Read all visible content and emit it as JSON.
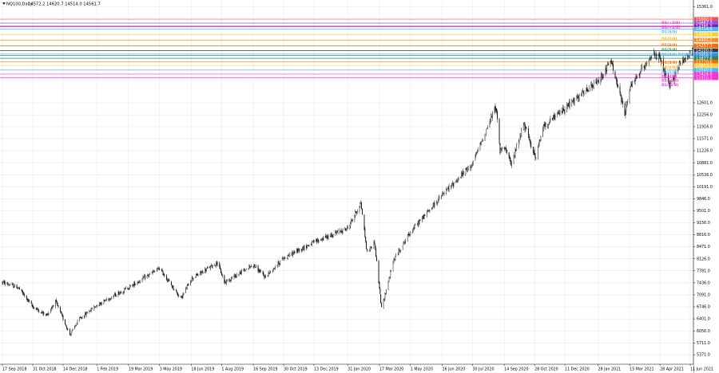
{
  "window": {
    "symbol": "NQ100,Daily",
    "ohlc": "14572.2 14620.7 14514.0 14561.7",
    "menu_icon": "triangle-down-icon"
  },
  "chart_data": {
    "type": "candlestick",
    "title": "NQ100,Daily",
    "grid": true,
    "ylim": [
      5100,
      15550
    ],
    "y_ticks": [
      "15361.0",
      "12601.0",
      "12256.0",
      "11916.0",
      "11571.0",
      "11226.0",
      "10881.0",
      "10536.0",
      "10191.0",
      "9846.0",
      "9501.0",
      "9156.0",
      "8816.0",
      "8471.0",
      "8126.0",
      "7781.0",
      "7436.0",
      "7091.0",
      "6746.0",
      "6401.0",
      "6056.0",
      "5711.0",
      "5371.0"
    ],
    "x_ticks": [
      "17 Sep 2018",
      "31 Oct 2018",
      "14 Dec 2018",
      "1 Feb 2019",
      "19 Mar 2019",
      "3 May 2019",
      "18 Jun 2019",
      "1 Aug 2019",
      "16 Sep 2019",
      "30 Oct 2019",
      "13 Dec 2019",
      "31 Jan 2020",
      "17 Mar 2020",
      "1 May 2020",
      "16 Jun 2020",
      "30 Jul 2020",
      "14 Sep 2020",
      "28 Oct 2020",
      "11 Dec 2020",
      "28 Jan 2021",
      "15 Mar 2021",
      "28 Apr 2021",
      "11 Jun 2021"
    ],
    "price_path": [
      [
        "17 Sep 2018",
        7450
      ],
      [
        "10 Oct 2018",
        7300
      ],
      [
        "31 Oct 2018",
        6750
      ],
      [
        "20 Nov 2018",
        6500
      ],
      [
        "3 Dec 2018",
        6900
      ],
      [
        "24 Dec 2018",
        5950
      ],
      [
        "7 Jan 2019",
        6400
      ],
      [
        "1 Feb 2019",
        6800
      ],
      [
        "19 Mar 2019",
        7300
      ],
      [
        "3 May 2019",
        7850
      ],
      [
        "3 Jun 2019",
        6980
      ],
      [
        "18 Jun 2019",
        7550
      ],
      [
        "26 Jul 2019",
        8020
      ],
      [
        "5 Aug 2019",
        7450
      ],
      [
        "16 Sep 2019",
        7950
      ],
      [
        "3 Oct 2019",
        7600
      ],
      [
        "30 Oct 2019",
        8150
      ],
      [
        "13 Dec 2019",
        8600
      ],
      [
        "31 Jan 2020",
        9000
      ],
      [
        "19 Feb 2020",
        9730
      ],
      [
        "28 Feb 2020",
        8300
      ],
      [
        "10 Mar 2020",
        8600
      ],
      [
        "20 Mar 2020",
        6700
      ],
      [
        "7 Apr 2020",
        8100
      ],
      [
        "1 May 2020",
        8900
      ],
      [
        "16 Jun 2020",
        9950
      ],
      [
        "30 Jul 2020",
        10850
      ],
      [
        "2 Sep 2020",
        12500
      ],
      [
        "8 Sep 2020",
        11200
      ],
      [
        "14 Sep 2020",
        11400
      ],
      [
        "24 Sep 2020",
        10800
      ],
      [
        "12 Oct 2020",
        12000
      ],
      [
        "30 Oct 2020",
        11000
      ],
      [
        "9 Nov 2020",
        11900
      ],
      [
        "11 Dec 2020",
        12450
      ],
      [
        "28 Jan 2021",
        13200
      ],
      [
        "16 Feb 2021",
        13800
      ],
      [
        "8 Mar 2021",
        12300
      ],
      [
        "15 Mar 2021",
        13000
      ],
      [
        "16 Apr 2021",
        14000
      ],
      [
        "28 Apr 2021",
        13850
      ],
      [
        "12 May 2021",
        13050
      ],
      [
        "26 May 2021",
        13700
      ],
      [
        "11 Jun 2021",
        14050
      ],
      [
        "1 Jul 2021",
        14561.7
      ]
    ],
    "levels": [
      {
        "value": 15000.0,
        "label": "15000.0",
        "color": "#ff4d4d",
        "note": ""
      },
      {
        "value": 14887.3,
        "label": "14887.3",
        "color": "#7a5cff",
        "note": ""
      },
      {
        "value": 14811.1,
        "label": "14811.1",
        "color": "#ff2fd3",
        "note": ""
      },
      {
        "value": 14785.2,
        "label": "14785.2",
        "color": "#7a1fa6",
        "note": ""
      },
      {
        "value": 14714.6,
        "label": "14714.6",
        "color": "#48b9ff",
        "note": ""
      },
      {
        "value": 14564.4,
        "label": "14564.4",
        "color": "#ffcc33",
        "note": ""
      },
      {
        "value": 14401.2,
        "label": "14401.2",
        "color": "#ff8c1a",
        "note": ""
      },
      {
        "value": 14237.3,
        "label": "14237.3",
        "color": "#ff6a00",
        "note": ""
      },
      {
        "value": 14100.0,
        "label": "14100.0",
        "color": "#3a3a3a",
        "note": ""
      },
      {
        "value": 13998.2,
        "label": "13998.2",
        "color": "#48b9ff",
        "note": ""
      },
      {
        "value": 13958.5,
        "label": "13958.5",
        "color": "#2e8bff",
        "note": ""
      },
      {
        "value": 13877.6,
        "label": "13877.6",
        "color": "#2d8a4e",
        "note": ""
      },
      {
        "value": 13770.6,
        "label": "13770.6",
        "color": "#ff6a00",
        "note": ""
      },
      {
        "value": 13673.3,
        "label": "13673.3",
        "color": "#ffcc33",
        "note": ""
      },
      {
        "value": 13540.6,
        "label": "13540.6",
        "color": "#48b9ff",
        "note": ""
      },
      {
        "value": 13424.6,
        "label": "13424.6",
        "color": "#ff2fd3",
        "note": ""
      },
      {
        "value": 13315.2,
        "label": "13315.2",
        "color": "#ff2fd3",
        "note": ""
      }
    ],
    "pivot_labels": [
      {
        "text": "D1(+2/8)",
        "value": 14900,
        "color": "#ff2fd3"
      },
      {
        "text": "D1(+1/8)",
        "value": 14760,
        "color": "#ff2fd3"
      },
      {
        "text": "D1(8/8)",
        "value": 14640,
        "color": "#48b9ff"
      },
      {
        "text": "D1(7/8)",
        "value": 14430,
        "color": "#ffb000"
      },
      {
        "text": "D1(6/8)",
        "value": 14260,
        "color": "#ff6a00"
      },
      {
        "text": "D1(5/8)",
        "value": 14120,
        "color": "#2d8a4e"
      },
      {
        "text": "D1(4/8) D1(PIVOT)",
        "value": 13980,
        "color": "#48b9ff"
      },
      {
        "text": "D1(3/8)",
        "value": 13750,
        "color": "#ff6a00"
      },
      {
        "text": "D1(2/8)",
        "value": 13610,
        "color": "#ffb000"
      },
      {
        "text": "D1(1/8)",
        "value": 13480,
        "color": "#48b9ff"
      },
      {
        "text": "D1(0/8)",
        "value": 13360,
        "color": "#ff2fd3"
      },
      {
        "text": "D1(-1/8)",
        "value": 13240,
        "color": "#ff2fd3"
      },
      {
        "text": "D1(-2/8)",
        "value": 13120,
        "color": "#ff2fd3"
      }
    ],
    "target_marker": {
      "date": "1 Jul 2021",
      "value": 15000,
      "icon": "x-mark-icon",
      "color": "#e34a4a"
    }
  }
}
